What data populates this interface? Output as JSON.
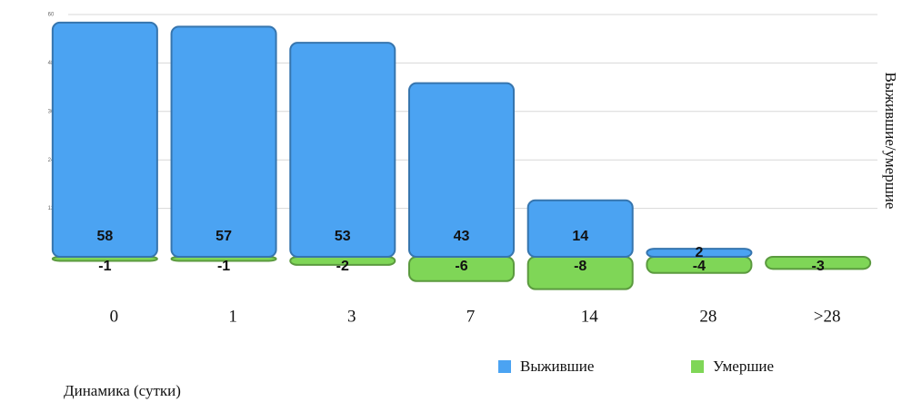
{
  "chart_data": {
    "type": "bar",
    "categories": [
      "0",
      "1",
      "3",
      "7",
      "14",
      "28",
      ">28"
    ],
    "series": [
      {
        "name": "Выжившие",
        "color": "#4ba3f2",
        "values": [
          58,
          57,
          53,
          43,
          14,
          2,
          null
        ]
      },
      {
        "name": "Умершие",
        "color": "#7fd657",
        "values": [
          -1,
          -1,
          -2,
          -6,
          -8,
          -4,
          -3
        ]
      }
    ],
    "ylim": [
      -10,
      60
    ],
    "yticks": [
      12,
      24,
      36,
      48,
      60
    ],
    "grid": true,
    "y_axis_label": "Выжившие/умершие",
    "x_axis_label": "Динамика (сутки)"
  }
}
